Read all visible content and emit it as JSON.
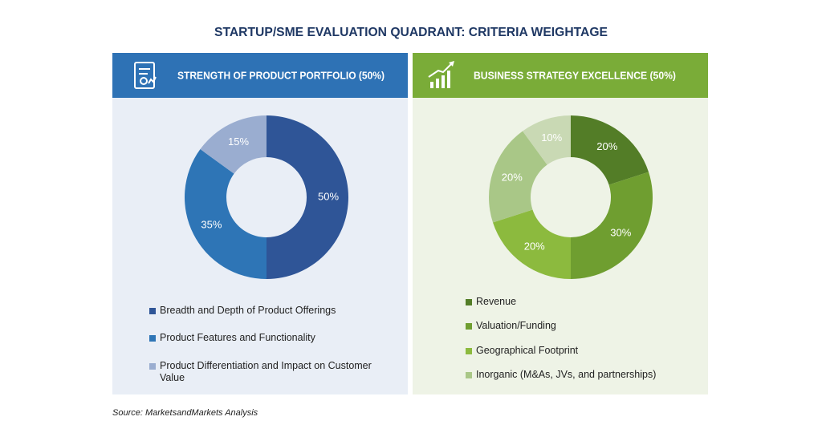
{
  "title": "STARTUP/SME EVALUATION QUADRANT: CRITERIA WEIGHTAGE",
  "source": "Source: MarketsandMarkets Analysis",
  "chart_data": [
    {
      "type": "donut",
      "title": "STRENGTH OF PRODUCT PORTFOLIO (50%)",
      "categories": [
        "Breadth and Depth of Product Offerings",
        "Product Features and Functionality",
        "Product Differentiation and Impact on Customer Value"
      ],
      "values": [
        50,
        35,
        15
      ],
      "value_labels": [
        "50%",
        "35%",
        "15%"
      ],
      "colors": [
        "#2f5597",
        "#2e75b6",
        "#9aadd0"
      ]
    },
    {
      "type": "donut",
      "title": "BUSINESS STRATEGY EXCELLENCE (50%)",
      "categories": [
        "Revenue",
        "Valuation/Funding",
        "Geographical Footprint",
        "Inorganic (M&As, JVs, and partnerships)",
        null
      ],
      "values": [
        20,
        30,
        20,
        20,
        10
      ],
      "value_labels": [
        "20%",
        "30%",
        "20%",
        "20%",
        "10%"
      ],
      "colors": [
        "#537d27",
        "#6f9e30",
        "#8cba3e",
        "#a9c787",
        "#c9d9b4"
      ]
    }
  ]
}
